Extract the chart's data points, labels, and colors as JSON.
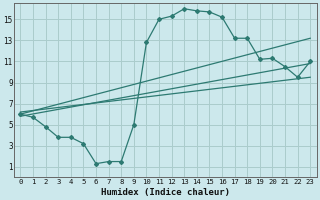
{
  "xlabel": "Humidex (Indice chaleur)",
  "bg_color": "#cce8ec",
  "grid_color": "#aacccc",
  "line_color": "#2d7a72",
  "xlim": [
    -0.5,
    23.5
  ],
  "ylim": [
    0,
    16.5
  ],
  "xticks": [
    0,
    1,
    2,
    3,
    4,
    5,
    6,
    7,
    8,
    9,
    10,
    11,
    12,
    13,
    14,
    15,
    16,
    17,
    18,
    19,
    20,
    21,
    22,
    23
  ],
  "yticks": [
    1,
    3,
    5,
    7,
    9,
    11,
    13,
    15
  ],
  "line1_x": [
    0,
    1,
    2,
    3,
    4,
    5,
    6,
    7,
    8,
    9,
    10,
    11,
    12,
    13,
    14,
    15,
    16,
    17,
    18,
    19,
    20,
    21,
    22,
    23
  ],
  "line1_y": [
    6.0,
    5.7,
    4.8,
    3.8,
    3.8,
    3.2,
    1.3,
    1.5,
    1.5,
    5.0,
    12.8,
    15.0,
    15.3,
    16.0,
    15.8,
    15.7,
    15.2,
    13.2,
    13.2,
    11.2,
    11.3,
    10.5,
    9.5,
    11.0
  ],
  "line2_x": [
    0,
    23
  ],
  "line2_y": [
    6.0,
    13.2
  ],
  "line3_x": [
    0,
    23
  ],
  "line3_y": [
    5.8,
    10.8
  ],
  "line4_x": [
    0,
    23
  ],
  "line4_y": [
    6.2,
    9.5
  ]
}
